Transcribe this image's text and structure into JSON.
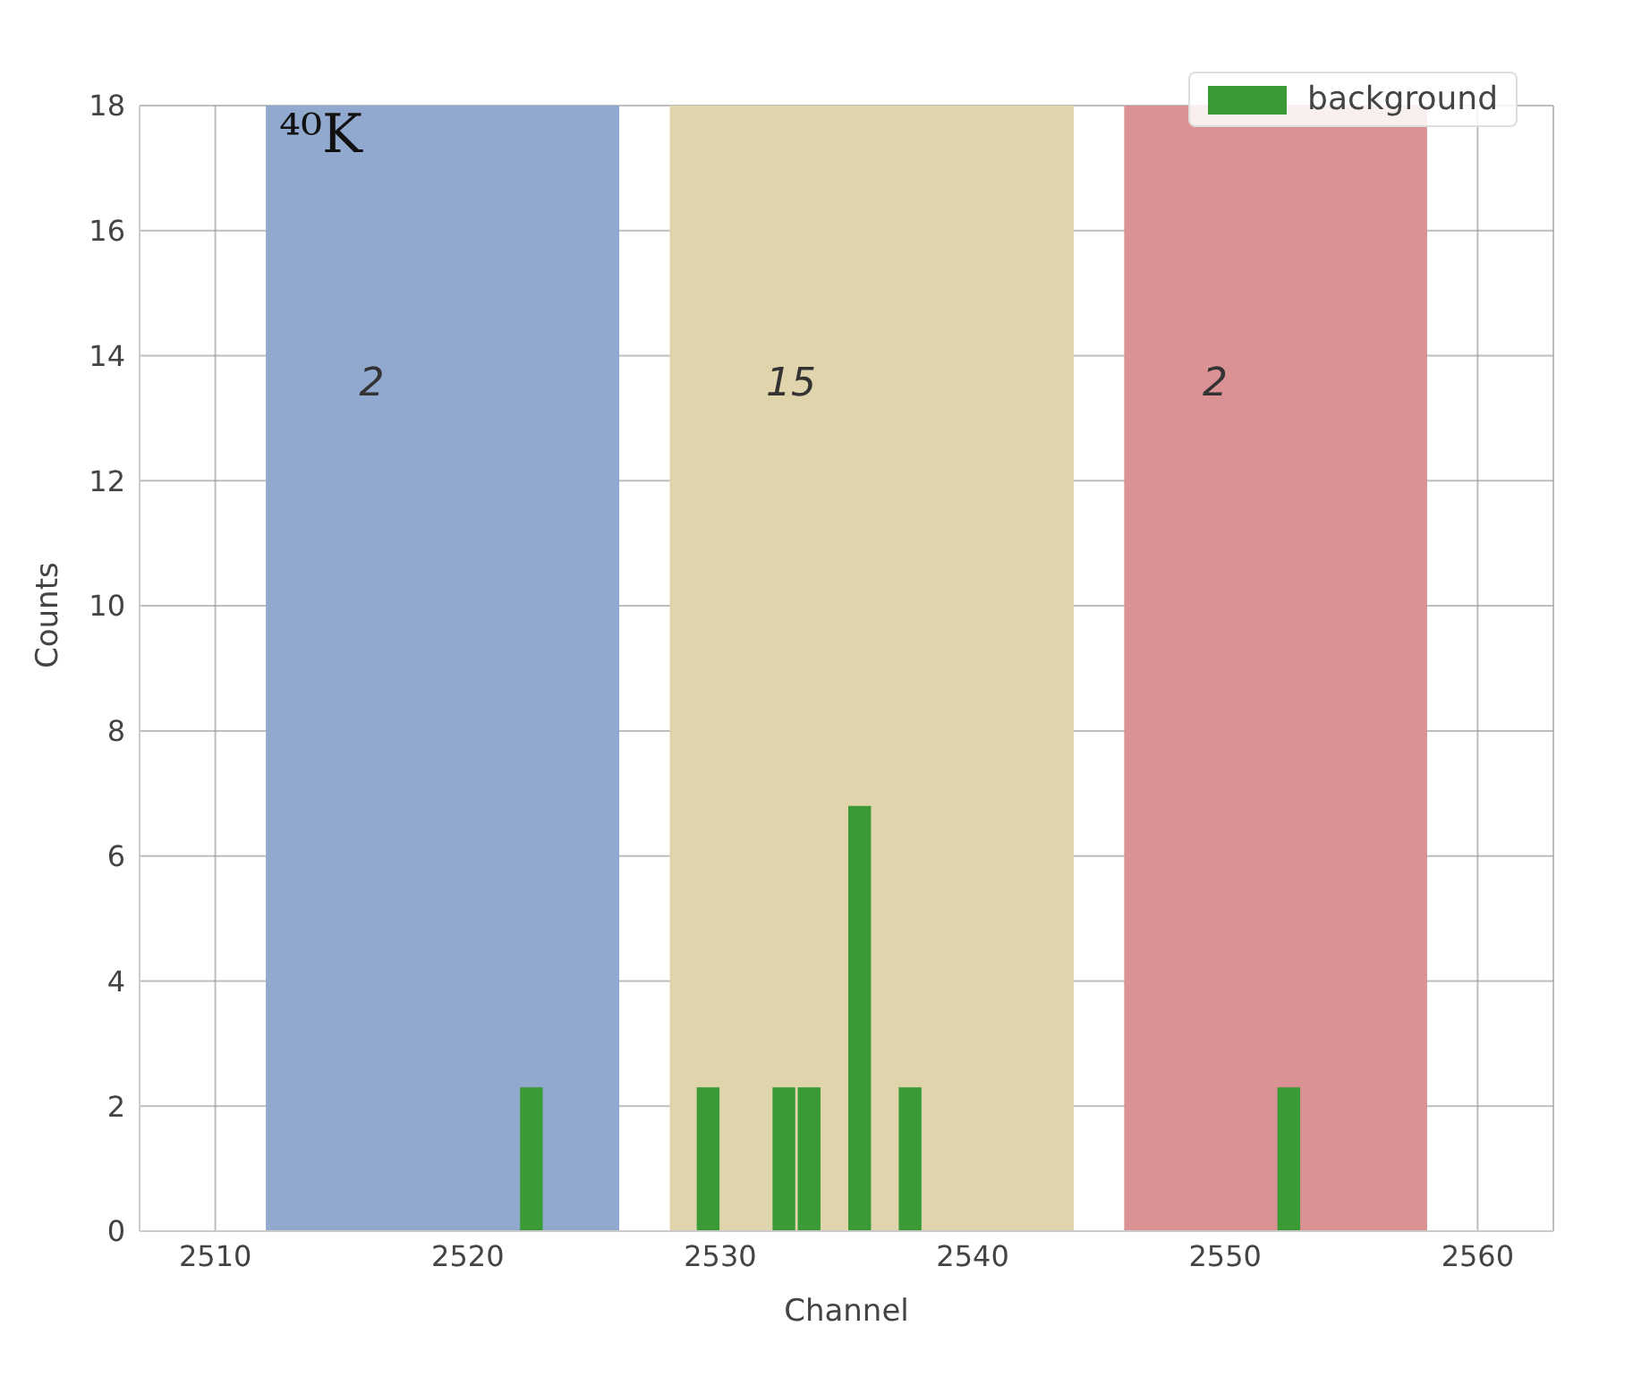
{
  "chart_data": {
    "type": "histogram",
    "xlabel": "Channel",
    "ylabel": "Counts",
    "bins": [
      2522,
      2523,
      2524,
      2525,
      2526,
      2527,
      2528,
      2529,
      2530,
      2531,
      2532,
      2533,
      2534,
      2535,
      2536,
      2537,
      2538,
      2539,
      2540,
      2541,
      2542,
      2543,
      2544,
      2545,
      2546,
      2547,
      2548,
      2549,
      2550,
      2551,
      2552,
      2553
    ],
    "series": [
      {
        "name": "background",
        "color": "#3a9a35",
        "values": [
          2.3,
          0,
          0,
          0,
          0,
          0,
          0,
          2.3,
          0,
          0,
          2.3,
          2.3,
          0,
          6.8,
          0,
          2.3,
          0,
          0,
          0,
          0,
          0,
          0,
          0,
          0,
          0,
          0,
          0,
          0,
          0,
          0,
          2.3
        ]
      }
    ],
    "xlim": [
      2507,
      2563
    ],
    "xticks": [
      2510,
      2520,
      2530,
      2540,
      2550,
      2560
    ],
    "ylim": [
      0,
      18
    ],
    "yticks": [
      0,
      2,
      4,
      6,
      8,
      10,
      12,
      14,
      16,
      18
    ],
    "bands": [
      {
        "axis": "x",
        "from": 2512,
        "to": 2526,
        "label": "2",
        "color": "#92a9cf"
      },
      {
        "axis": "x",
        "from": 2528,
        "to": 2544,
        "label": "15",
        "color": "#dfd4ab"
      },
      {
        "axis": "x",
        "from": 2546,
        "to": 2558,
        "label": "2",
        "color": "#da9295"
      }
    ],
    "annotations": [
      "⁴⁰K"
    ],
    "grid": true,
    "legend": "top right"
  }
}
